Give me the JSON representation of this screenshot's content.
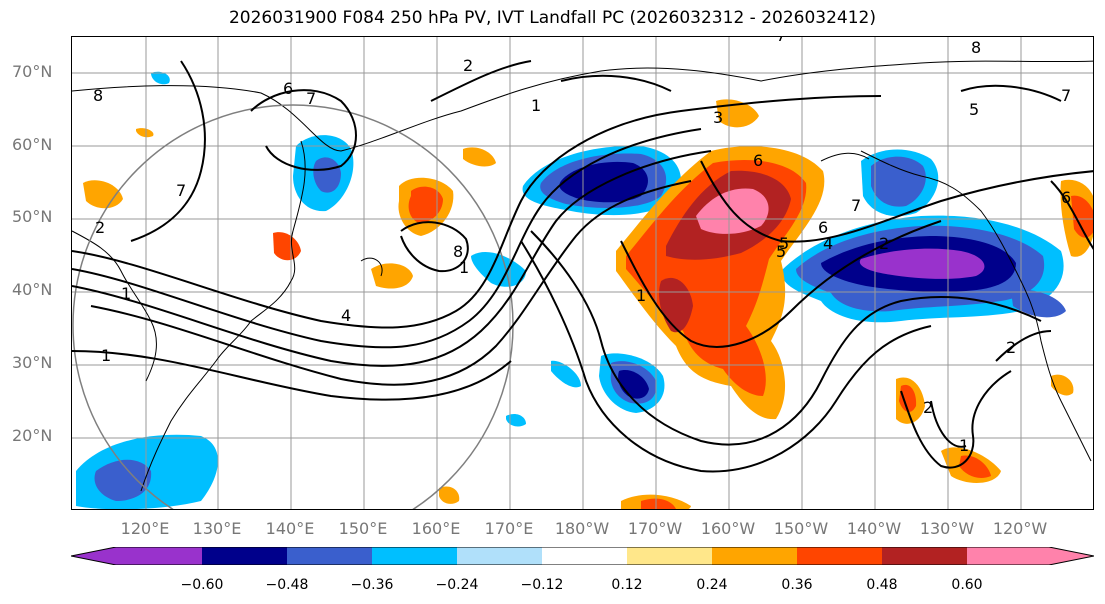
{
  "title": "2026031900 F084 250 hPa PV, IVT Landfall PC (2026032312 - 2026032412)",
  "lat_labels": [
    "70°N",
    "60°N",
    "50°N",
    "40°N",
    "30°N",
    "20°N"
  ],
  "lon_labels": [
    "120°E",
    "130°E",
    "140°E",
    "150°E",
    "160°E",
    "170°E",
    "180°W",
    "170°W",
    "160°W",
    "150°W",
    "140°W",
    "130°W",
    "120°W"
  ],
  "colorbar": {
    "ticks": [
      "−0.60",
      "−0.48",
      "−0.36",
      "−0.24",
      "−0.12",
      "0.12",
      "0.24",
      "0.36",
      "0.48",
      "0.60"
    ],
    "colors": [
      "#9932cc",
      "#00008b",
      "#3a5fcd",
      "#00bfff",
      "#b0e0fa",
      "#ffffff",
      "#ffe78a",
      "#ffa500",
      "#ff4500",
      "#b22222",
      "#ff82ab"
    ]
  },
  "contour_labels": [
    "8",
    "6",
    "7",
    "2",
    "7",
    "1",
    "4",
    "2",
    "1",
    "3",
    "6",
    "5",
    "7",
    "1",
    "8",
    "5",
    "6",
    "2",
    "4",
    "5",
    "6",
    "7",
    "2",
    "2",
    "1",
    "1",
    "8",
    "7",
    "1"
  ]
}
